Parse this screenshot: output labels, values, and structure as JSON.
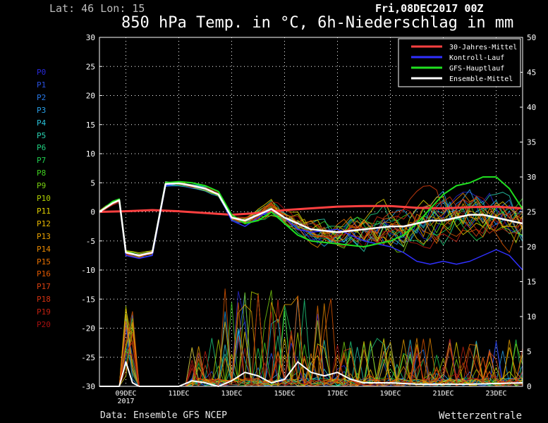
{
  "header": {
    "latlon": "Lat: 46 Lon: 15",
    "datetime": "Fri,08DEC2017 00Z",
    "title": "850 hPa Temp. in °C, 6h-Niederschlag in mm"
  },
  "footer": {
    "source": "Data: Ensemble GFS NCEP",
    "brand": "Wetterzentrale"
  },
  "members": [
    {
      "label": "P0",
      "color": "#2828d8"
    },
    {
      "label": "P1",
      "color": "#2850e0"
    },
    {
      "label": "P2",
      "color": "#2878e8"
    },
    {
      "label": "P3",
      "color": "#28a0e8"
    },
    {
      "label": "P4",
      "color": "#28c0d8"
    },
    {
      "label": "P5",
      "color": "#28d0b0"
    },
    {
      "label": "P6",
      "color": "#20d080"
    },
    {
      "label": "P7",
      "color": "#20d050"
    },
    {
      "label": "P8",
      "color": "#40d020"
    },
    {
      "label": "P9",
      "color": "#78d010"
    },
    {
      "label": "P10",
      "color": "#b0d000"
    },
    {
      "label": "P11",
      "color": "#e0d000"
    },
    {
      "label": "P12",
      "color": "#e8b800"
    },
    {
      "label": "P13",
      "color": "#e8a000"
    },
    {
      "label": "P14",
      "color": "#e88800"
    },
    {
      "label": "P15",
      "color": "#e87000"
    },
    {
      "label": "P16",
      "color": "#e05800"
    },
    {
      "label": "P17",
      "color": "#d84010"
    },
    {
      "label": "P18",
      "color": "#d03010"
    },
    {
      "label": "P19",
      "color": "#c02010"
    },
    {
      "label": "P20",
      "color": "#a81010"
    }
  ],
  "chart_data": {
    "type": "line",
    "title": "850 hPa Temp. in °C, 6h-Niederschlag in mm",
    "x_unit": "days from 08DEC2017 00Z",
    "xlim": [
      0,
      16
    ],
    "x_ticks": [
      {
        "value": 1,
        "label": "09DEC",
        "sublabel": "2017"
      },
      {
        "value": 3,
        "label": "11DEC"
      },
      {
        "value": 5,
        "label": "13DEC"
      },
      {
        "value": 7,
        "label": "15DEC"
      },
      {
        "value": 9,
        "label": "17DEC"
      },
      {
        "value": 11,
        "label": "19DEC"
      },
      {
        "value": 13,
        "label": "21DEC"
      },
      {
        "value": 15,
        "label": "23DEC"
      }
    ],
    "ylim_left": [
      -30,
      30
    ],
    "yticks_left": [
      -30,
      -25,
      -20,
      -15,
      -10,
      -5,
      0,
      5,
      10,
      15,
      20,
      25,
      30
    ],
    "ylim_right": [
      0,
      50
    ],
    "yticks_right": [
      0,
      5,
      10,
      15,
      20,
      25,
      30,
      35,
      40,
      45,
      50
    ],
    "grid": true,
    "legend_position": "top-right",
    "series": [
      {
        "name": "30-Jahres-Mittel",
        "color": "#ff4040",
        "axis": "left",
        "width": 3,
        "x": [
          0,
          1,
          2,
          3,
          4,
          5,
          6,
          7,
          8,
          9,
          10,
          11,
          12,
          13,
          14,
          15,
          16
        ],
        "y": [
          0.0,
          0.1,
          0.3,
          0.1,
          -0.2,
          -0.5,
          -0.2,
          0.3,
          0.6,
          0.9,
          1.0,
          1.0,
          0.7,
          0.6,
          0.8,
          0.9,
          0.6
        ]
      },
      {
        "name": "Kontroll-Lauf",
        "color": "#3030ff",
        "axis": "left",
        "width": 1.5,
        "x": [
          0,
          0.5,
          0.75,
          1,
          1.5,
          2,
          2.5,
          3,
          3.5,
          4,
          4.5,
          5,
          5.5,
          6,
          6.5,
          7,
          7.5,
          8,
          9,
          10,
          11,
          11.5,
          12,
          12.5,
          13,
          13.5,
          14,
          14.5,
          15,
          15.5,
          16
        ],
        "y": [
          0,
          1.5,
          2.0,
          -7.5,
          -8.0,
          -7.5,
          4.5,
          5.0,
          4.5,
          4.0,
          3.0,
          -1.5,
          -2.5,
          -1.0,
          0.5,
          -1.0,
          -3.0,
          -3.5,
          -3.0,
          -5.0,
          -6.0,
          -7.0,
          -8.5,
          -9.0,
          -8.5,
          -9.0,
          -8.5,
          -7.5,
          -6.5,
          -7.5,
          -10.0
        ]
      },
      {
        "name": "GFS-Hauptlauf",
        "color": "#20e020",
        "axis": "left",
        "width": 2,
        "x": [
          0,
          0.5,
          0.75,
          1,
          1.5,
          2,
          2.5,
          3,
          3.5,
          4,
          4.5,
          5,
          5.5,
          6,
          6.5,
          7,
          7.5,
          8,
          9,
          10,
          11,
          11.5,
          12,
          12.5,
          13,
          13.5,
          14,
          14.5,
          15,
          15.5,
          16
        ],
        "y": [
          0,
          1.8,
          2.2,
          -7.0,
          -7.5,
          -7.0,
          5.0,
          5.2,
          5.0,
          4.5,
          3.5,
          -0.5,
          -2.0,
          -1.5,
          0.0,
          -2.0,
          -4.0,
          -5.0,
          -5.5,
          -6.0,
          -5.0,
          -4.0,
          -2.0,
          0.5,
          3.0,
          4.5,
          5.0,
          6.0,
          6.0,
          4.0,
          0.5
        ]
      },
      {
        "name": "Ensemble-Mittel",
        "color": "#ffffff",
        "axis": "left",
        "width": 2.5,
        "x": [
          0,
          0.5,
          0.75,
          1,
          1.5,
          2,
          2.5,
          3,
          3.5,
          4,
          4.5,
          5,
          5.5,
          6,
          6.5,
          7,
          7.5,
          8,
          9,
          10,
          11,
          11.5,
          12,
          12.5,
          13,
          13.5,
          14,
          14.5,
          15,
          15.5,
          16
        ],
        "y": [
          0,
          1.5,
          2.0,
          -7.0,
          -7.5,
          -7.0,
          4.8,
          4.9,
          4.5,
          4.0,
          3.0,
          -1.0,
          -1.5,
          -0.5,
          0.5,
          -1.0,
          -2.0,
          -3.0,
          -3.5,
          -3.0,
          -2.5,
          -2.5,
          -2.0,
          -1.5,
          -1.5,
          -1.0,
          -0.5,
          -0.5,
          -1.0,
          -1.5,
          -2.0
        ]
      },
      {
        "name": "Ensemble-Mittel Niederschlag",
        "color": "#ffffff",
        "axis": "right",
        "width": 2,
        "x": [
          0,
          0.75,
          1,
          1.25,
          1.5,
          2,
          3,
          3.5,
          4,
          4.5,
          5,
          5.5,
          6,
          6.5,
          7,
          7.5,
          8,
          8.5,
          9,
          9.5,
          10,
          11,
          12,
          13,
          14,
          15,
          16
        ],
        "y": [
          0,
          0,
          3.5,
          0.5,
          0,
          0,
          0,
          0.8,
          0.5,
          0,
          0.8,
          2.0,
          1.5,
          0.5,
          1.0,
          3.5,
          2.0,
          1.5,
          2.0,
          1.0,
          0.5,
          0.5,
          0.3,
          0.3,
          0.3,
          0.4,
          0.5
        ]
      }
    ]
  }
}
